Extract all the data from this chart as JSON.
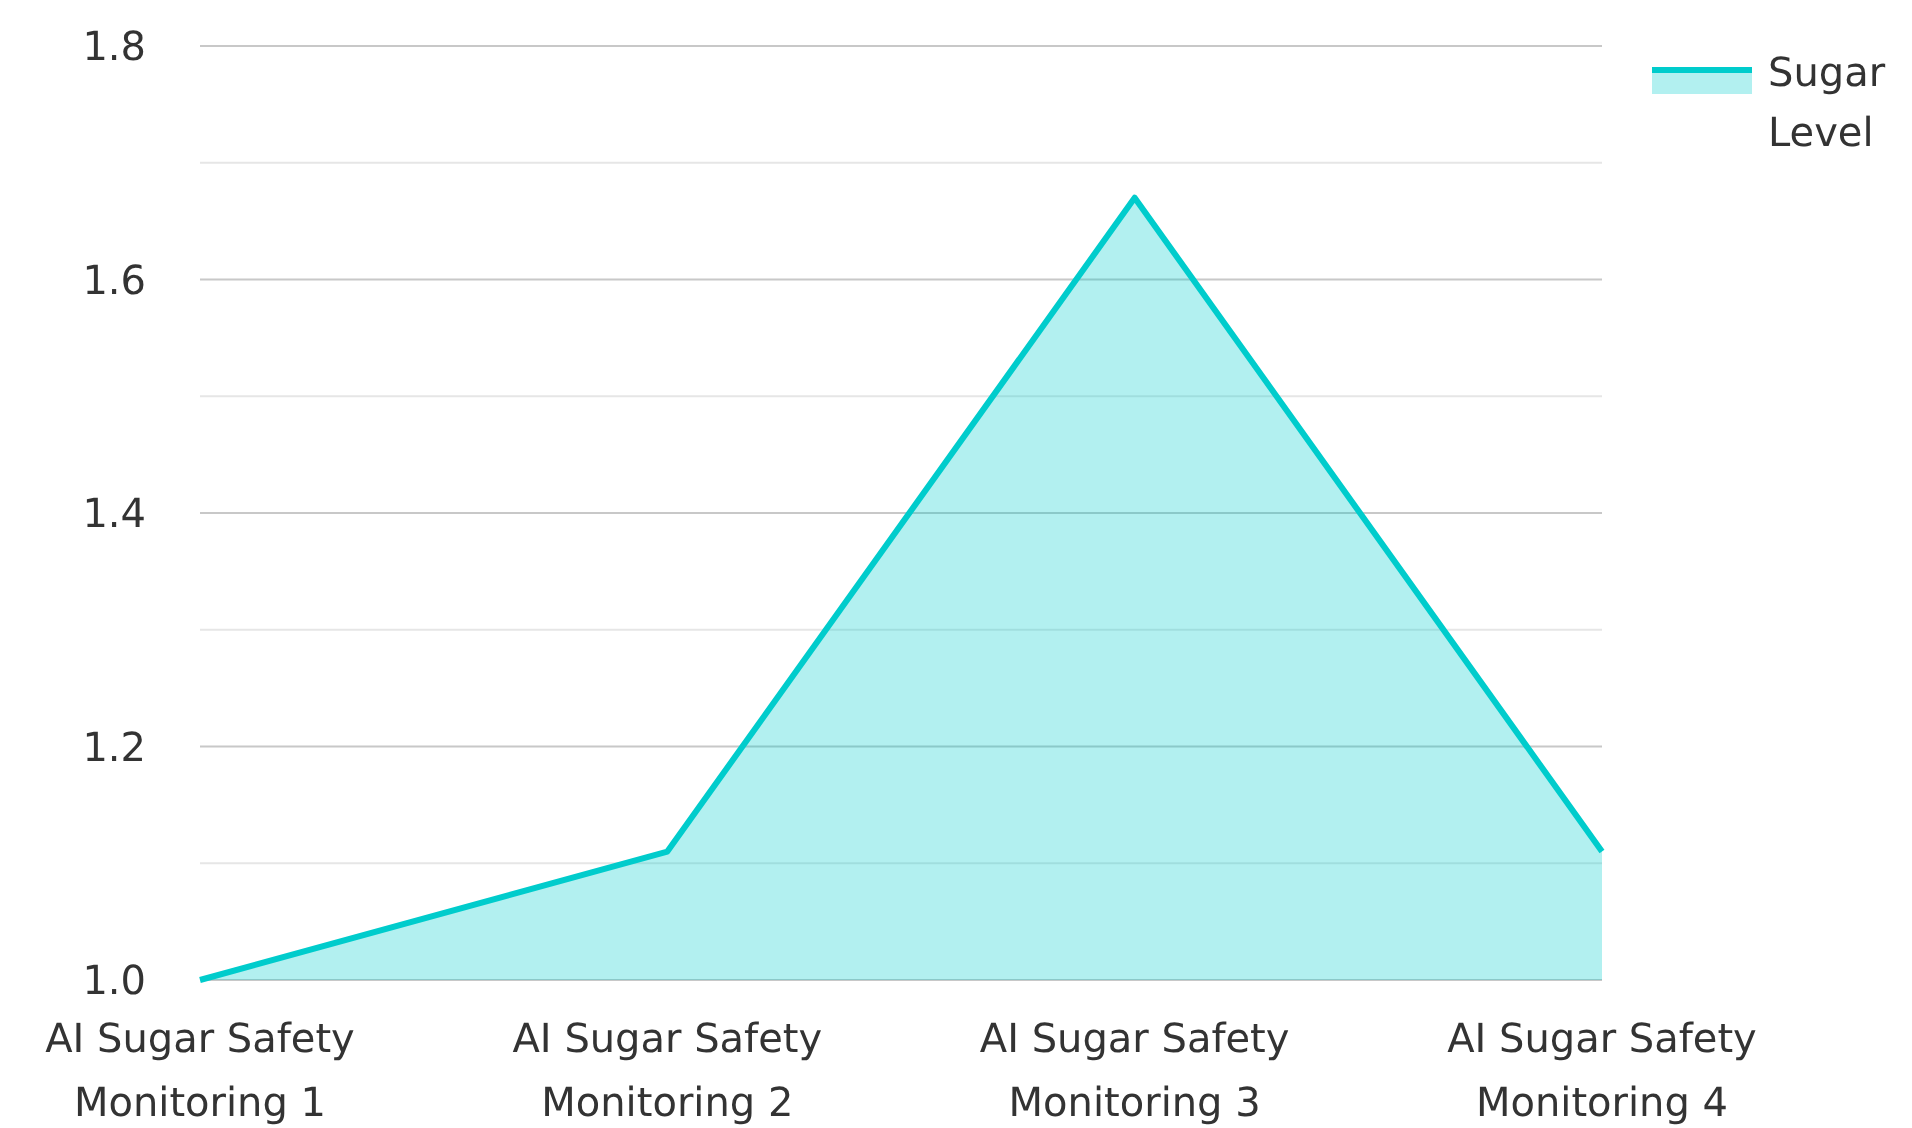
{
  "chart_data": {
    "type": "area",
    "categories": [
      "AI Sugar Safety Monitoring 1",
      "AI Sugar Safety Monitoring 2",
      "AI Sugar Safety Monitoring 3",
      "AI Sugar Safety Monitoring 4"
    ],
    "series": [
      {
        "name": "Sugar Level",
        "color": "#00cccc",
        "values": [
          1.0,
          1.11,
          1.67,
          1.11
        ]
      }
    ],
    "ylim": [
      1.0,
      1.8
    ],
    "yticks": [
      {
        "value": 1.0,
        "label": "1.0"
      },
      {
        "value": 1.1,
        "label": null
      },
      {
        "value": 1.2,
        "label": "1.2"
      },
      {
        "value": 1.3,
        "label": null
      },
      {
        "value": 1.4,
        "label": "1.4"
      },
      {
        "value": 1.5,
        "label": null
      },
      {
        "value": 1.6,
        "label": "1.6"
      },
      {
        "value": 1.7,
        "label": null
      },
      {
        "value": 1.8,
        "label": "1.8"
      }
    ],
    "grid": "y",
    "legend": "top right"
  }
}
